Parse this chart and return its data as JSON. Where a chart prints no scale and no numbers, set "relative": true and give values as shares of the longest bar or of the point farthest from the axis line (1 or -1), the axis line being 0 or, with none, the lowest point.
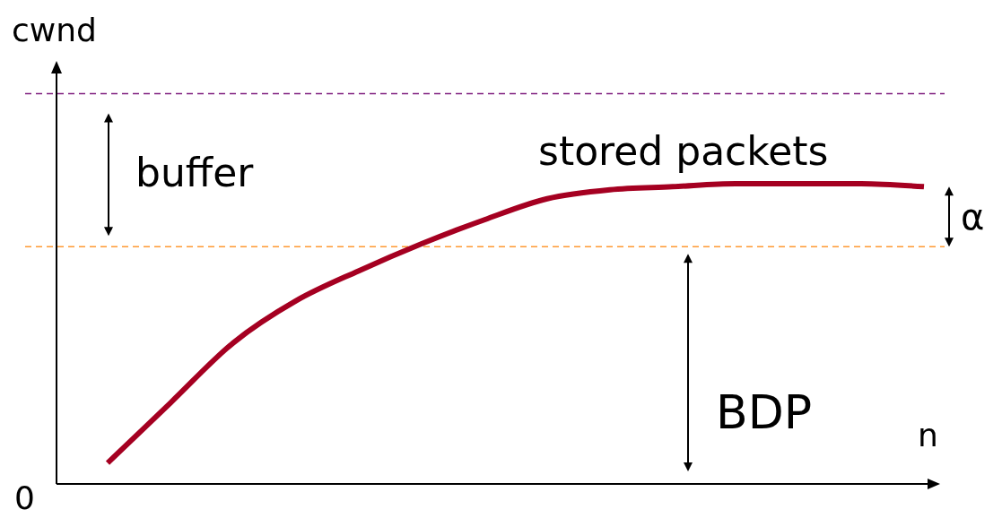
{
  "chart_data": {
    "type": "line",
    "relative": true,
    "xlabel": "n",
    "ylabel": "cwnd",
    "categories": [
      null,
      null,
      null,
      null,
      null,
      null,
      null,
      null,
      null,
      null,
      null,
      null,
      null,
      null
    ],
    "series": [
      {
        "color": "#a50021",
        "values": [
          0.07,
          0.27,
          0.47,
          0.61,
          0.71,
          0.8,
          0.88,
          0.95,
          0.98,
          0.99,
          1.0,
          1.0,
          1.0,
          0.99
        ]
      }
    ],
    "ref_lines": [
      {
        "axis": "y",
        "value": 0.79,
        "color": "#ff9933",
        "line_style": "dashed"
      },
      {
        "axis": "y",
        "value": 1.3,
        "color": "#7f1f7f",
        "line_style": "dashed"
      }
    ],
    "annotations": [
      "buffer",
      "stored packets",
      "α",
      "BDP",
      "0"
    ],
    "marker": "none",
    "line_style": "solid"
  }
}
